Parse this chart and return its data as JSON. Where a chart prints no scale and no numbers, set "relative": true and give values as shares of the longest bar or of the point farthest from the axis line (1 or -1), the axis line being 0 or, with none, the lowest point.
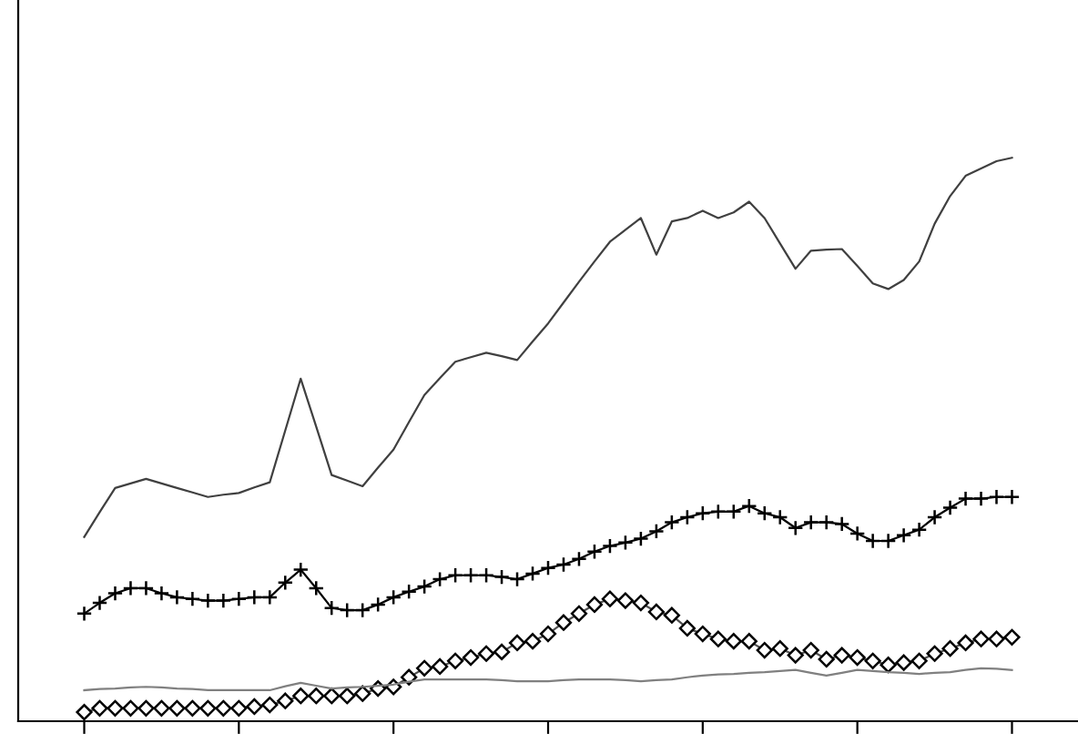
{
  "chart_data": {
    "type": "line",
    "relative": true,
    "grid": false,
    "legend": false,
    "categories": [
      null,
      null,
      null,
      null,
      null,
      null,
      null,
      null,
      null,
      null,
      null,
      null,
      null,
      null,
      null,
      null,
      null,
      null,
      null,
      null,
      null,
      null,
      null,
      null,
      null,
      null,
      null,
      null,
      null,
      null,
      null,
      null,
      null,
      null,
      null,
      null,
      null,
      null,
      null,
      null,
      null,
      null,
      null,
      null,
      null,
      null,
      null,
      null,
      null,
      null,
      null,
      null,
      null,
      null,
      null,
      null,
      null,
      null,
      null,
      null,
      null
    ],
    "series": [
      {
        "color": "#404040",
        "marker": "none",
        "values": [
          0.327,
          0.371,
          0.414,
          0.422,
          0.43,
          0.422,
          0.414,
          0.406,
          0.398,
          0.402,
          0.405,
          0.415,
          0.424,
          0.516,
          0.608,
          0.523,
          0.437,
          0.427,
          0.417,
          0.45,
          0.482,
          0.531,
          0.579,
          0.609,
          0.638,
          0.646,
          0.654,
          0.648,
          0.641,
          0.674,
          0.706,
          0.743,
          0.78,
          0.816,
          0.851,
          0.872,
          0.893,
          0.828,
          0.887,
          0.893,
          0.906,
          0.893,
          0.903,
          0.922,
          0.893,
          0.848,
          0.803,
          0.835,
          0.837,
          0.838,
          0.808,
          0.777,
          0.767,
          0.783,
          0.816,
          0.883,
          0.932,
          0.968,
          0.981,
          0.994,
          1.0
        ]
      },
      {
        "color": "#000000",
        "marker": "cross",
        "values": [
          0.191,
          0.21,
          0.227,
          0.236,
          0.236,
          0.227,
          0.22,
          0.217,
          0.214,
          0.214,
          0.217,
          0.22,
          0.22,
          0.246,
          0.269,
          0.236,
          0.201,
          0.197,
          0.197,
          0.207,
          0.22,
          0.23,
          0.239,
          0.252,
          0.259,
          0.259,
          0.259,
          0.256,
          0.252,
          0.262,
          0.272,
          0.278,
          0.288,
          0.301,
          0.311,
          0.317,
          0.324,
          0.337,
          0.353,
          0.362,
          0.369,
          0.372,
          0.372,
          0.382,
          0.369,
          0.362,
          0.343,
          0.353,
          0.353,
          0.35,
          0.333,
          0.32,
          0.32,
          0.33,
          0.34,
          0.362,
          0.379,
          0.395,
          0.395,
          0.398,
          0.398
        ]
      },
      {
        "color": "#505050",
        "marker": "diamond",
        "values": [
          0.016,
          0.023,
          0.023,
          0.023,
          0.023,
          0.023,
          0.023,
          0.023,
          0.023,
          0.023,
          0.023,
          0.026,
          0.029,
          0.036,
          0.045,
          0.045,
          0.045,
          0.045,
          0.049,
          0.058,
          0.061,
          0.078,
          0.094,
          0.097,
          0.107,
          0.113,
          0.12,
          0.123,
          0.139,
          0.142,
          0.155,
          0.175,
          0.191,
          0.207,
          0.217,
          0.214,
          0.21,
          0.194,
          0.188,
          0.165,
          0.155,
          0.146,
          0.142,
          0.142,
          0.126,
          0.129,
          0.117,
          0.126,
          0.11,
          0.117,
          0.113,
          0.107,
          0.1,
          0.104,
          0.107,
          0.12,
          0.129,
          0.139,
          0.146,
          0.146,
          0.149
        ]
      },
      {
        "color": "#808080",
        "marker": "none",
        "values": [
          0.055,
          0.057,
          0.058,
          0.06,
          0.061,
          0.06,
          0.058,
          0.057,
          0.055,
          0.055,
          0.055,
          0.055,
          0.055,
          0.062,
          0.068,
          0.063,
          0.058,
          0.06,
          0.061,
          0.063,
          0.065,
          0.07,
          0.074,
          0.074,
          0.074,
          0.074,
          0.074,
          0.073,
          0.071,
          0.071,
          0.071,
          0.073,
          0.074,
          0.074,
          0.074,
          0.073,
          0.071,
          0.073,
          0.074,
          0.078,
          0.081,
          0.083,
          0.084,
          0.086,
          0.087,
          0.089,
          0.091,
          0.086,
          0.081,
          0.086,
          0.091,
          0.089,
          0.087,
          0.086,
          0.084,
          0.086,
          0.087,
          0.091,
          0.094,
          0.093,
          0.091
        ]
      }
    ]
  }
}
